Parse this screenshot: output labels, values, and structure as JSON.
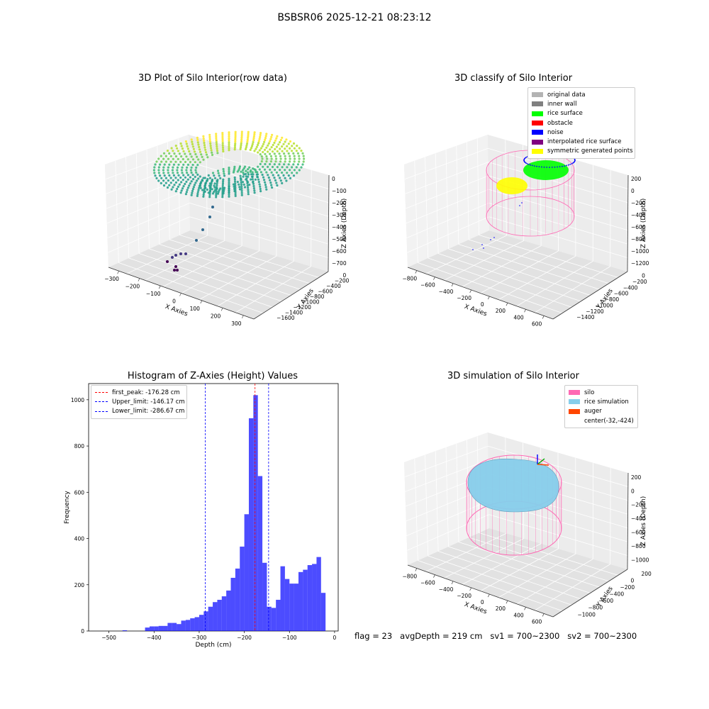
{
  "figure": {
    "title": "BSBSR06 2025-12-21 08:23:12",
    "footer": {
      "flag": "flag = 23",
      "avg_depth": "avgDepth = 219 cm",
      "sv1": "sv1 = 700~2300",
      "sv2": "sv2 = 700~2300"
    }
  },
  "panels": {
    "raw": {
      "title": "3D Plot of Silo Interior(row data)",
      "xlabel": "X Axies",
      "ylabel": "Y Axies",
      "zlabel": "Z Axies (Depth)",
      "x_ticks": [
        "−300",
        "−200",
        "−100",
        "0",
        "100",
        "200",
        "300"
      ],
      "y_ticks": [
        "0",
        "−200",
        "−400",
        "−600",
        "−800",
        "−1000",
        "−1200",
        "−1400",
        "−1600"
      ],
      "z_ticks": [
        "0",
        "−100",
        "−200",
        "−300",
        "−400",
        "−500",
        "−600",
        "−700"
      ]
    },
    "classify": {
      "title": "3D classify of Silo Interior",
      "xlabel": "X Axies",
      "ylabel": "Y Axies",
      "zlabel": "Z Axies (Depth)",
      "x_ticks": [
        "−800",
        "−600",
        "−400",
        "−200",
        "0",
        "200",
        "400",
        "600"
      ],
      "y_ticks": [
        "0",
        "−200",
        "−400",
        "−600",
        "−800",
        "−1000",
        "−1200",
        "−1400"
      ],
      "z_ticks": [
        "200",
        "0",
        "−200",
        "−400",
        "−600",
        "−800",
        "−1000",
        "−1200"
      ],
      "legend": [
        {
          "label": "original data",
          "color": "#b3b3b3"
        },
        {
          "label": "inner wall",
          "color": "#808080"
        },
        {
          "label": "rice surface",
          "color": "#00ff00"
        },
        {
          "label": "obstacle",
          "color": "#ff0000"
        },
        {
          "label": "noise",
          "color": "#0000ff"
        },
        {
          "label": "interpolated rice surface",
          "color": "#800080"
        },
        {
          "label": "symmetric generated points",
          "color": "#ffff00"
        }
      ]
    },
    "simulation": {
      "title": "3D simulation of Silo Interior",
      "xlabel": "X Axies",
      "ylabel": "Y Axies",
      "zlabel": "Z Axies (Depth)",
      "x_ticks": [
        "−800",
        "−600",
        "−400",
        "−200",
        "0",
        "200",
        "400",
        "600"
      ],
      "y_ticks": [
        "200",
        "0",
        "−200",
        "−400",
        "−600",
        "−800",
        "−1000"
      ],
      "z_ticks": [
        "200",
        "0",
        "−200",
        "−400",
        "−600",
        "−800",
        "−1000"
      ],
      "legend": [
        {
          "label": "silo",
          "color": "#ff69b4"
        },
        {
          "label": "rice simulation",
          "color": "#87ceeb"
        },
        {
          "label": "auger",
          "color": "#ff4500"
        },
        {
          "label": "center(-32,-424)",
          "color": ""
        }
      ]
    }
  },
  "chart_data": [
    {
      "type": "bar",
      "title": "Histogram of Z-Axies (Height) Values",
      "xlabel": "Depth (cm)",
      "ylabel": "Frequency",
      "xlim": [
        -545,
        8
      ],
      "ylim": [
        0,
        1070
      ],
      "x_ticks": [
        -500,
        -400,
        -300,
        -200,
        -100,
        0
      ],
      "y_ticks": [
        0,
        200,
        400,
        600,
        800,
        1000
      ],
      "bar_color": "#0000ff",
      "bar_alpha": 0.7,
      "bins": [
        [
          -420,
          -410,
          15
        ],
        [
          -410,
          -400,
          20
        ],
        [
          -400,
          -390,
          20
        ],
        [
          -390,
          -380,
          22
        ],
        [
          -380,
          -370,
          22
        ],
        [
          -370,
          -360,
          35
        ],
        [
          -360,
          -350,
          35
        ],
        [
          -350,
          -340,
          30
        ],
        [
          -340,
          -330,
          45
        ],
        [
          -330,
          -320,
          48
        ],
        [
          -320,
          -310,
          55
        ],
        [
          -310,
          -300,
          60
        ],
        [
          -300,
          -290,
          70
        ],
        [
          -290,
          -280,
          85
        ],
        [
          -280,
          -270,
          105
        ],
        [
          -270,
          -260,
          125
        ],
        [
          -260,
          -250,
          135
        ],
        [
          -250,
          -240,
          150
        ],
        [
          -240,
          -230,
          175
        ],
        [
          -230,
          -220,
          230
        ],
        [
          -220,
          -210,
          270
        ],
        [
          -210,
          -200,
          365
        ],
        [
          -200,
          -190,
          505
        ],
        [
          -190,
          -180,
          920
        ],
        [
          -180,
          -170,
          1020
        ],
        [
          -170,
          -160,
          670
        ],
        [
          -160,
          -150,
          295
        ],
        [
          -150,
          -140,
          105
        ],
        [
          -140,
          -130,
          100
        ],
        [
          -130,
          -120,
          135
        ],
        [
          -120,
          -110,
          280
        ],
        [
          -110,
          -100,
          225
        ],
        [
          -100,
          -90,
          205
        ],
        [
          -90,
          -80,
          205
        ],
        [
          -80,
          -70,
          255
        ],
        [
          -70,
          -60,
          265
        ],
        [
          -60,
          -50,
          285
        ],
        [
          -50,
          -40,
          290
        ],
        [
          -40,
          -30,
          320
        ],
        [
          -30,
          -20,
          165
        ],
        [
          -470,
          -460,
          3
        ]
      ],
      "vlines": [
        {
          "label": "first_peak: -176.28 cm",
          "x": -176.28,
          "color": "#ff0000"
        },
        {
          "label": "Upper_limit: -146.17 cm",
          "x": -146.17,
          "color": "#0000ff"
        },
        {
          "label": "Lower_limit: -286.67 cm",
          "x": -286.67,
          "color": "#0000ff"
        }
      ]
    }
  ]
}
